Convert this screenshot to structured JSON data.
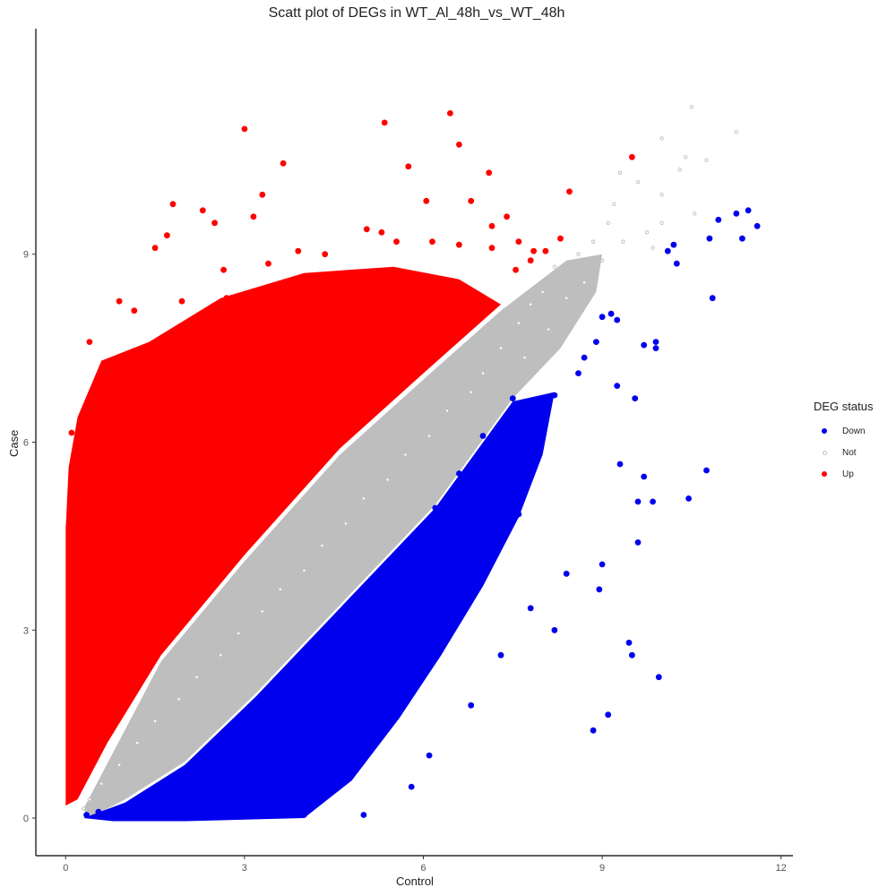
{
  "chart_data": {
    "type": "scatter",
    "title": "Scatt plot of DEGs in WT_Al_48h_vs_WT_48h",
    "xlabel": "Control",
    "ylabel": "Case",
    "xlim": [
      -0.5,
      12.2
    ],
    "ylim": [
      -0.6,
      12.6
    ],
    "x_ticks": [
      0,
      3,
      6,
      9,
      12
    ],
    "y_ticks": [
      0,
      3,
      6,
      9
    ],
    "grid": false,
    "legend": {
      "title": "DEG status",
      "placement": "right",
      "entries": [
        {
          "label": "Down",
          "color": "#0000ee"
        },
        {
          "label": "Not",
          "color": "#bebebe"
        },
        {
          "label": "Up",
          "color": "#ff0000"
        }
      ]
    },
    "series": [
      {
        "name": "Up",
        "color": "#ff0000",
        "points": [
          [
            3.0,
            11.0
          ],
          [
            5.35,
            11.1
          ],
          [
            6.45,
            11.25
          ],
          [
            6.6,
            10.75
          ],
          [
            3.65,
            10.45
          ],
          [
            5.75,
            10.4
          ],
          [
            7.1,
            10.3
          ],
          [
            9.5,
            10.55
          ],
          [
            2.3,
            9.7
          ],
          [
            1.8,
            9.8
          ],
          [
            3.3,
            9.95
          ],
          [
            3.15,
            9.6
          ],
          [
            2.5,
            9.5
          ],
          [
            6.05,
            9.85
          ],
          [
            6.8,
            9.85
          ],
          [
            7.4,
            9.6
          ],
          [
            7.15,
            9.45
          ],
          [
            8.45,
            10.0
          ],
          [
            1.7,
            9.3
          ],
          [
            1.5,
            9.1
          ],
          [
            3.9,
            9.05
          ],
          [
            4.35,
            9.0
          ],
          [
            5.05,
            9.4
          ],
          [
            5.3,
            9.35
          ],
          [
            5.55,
            9.2
          ],
          [
            6.15,
            9.2
          ],
          [
            6.6,
            9.15
          ],
          [
            7.15,
            9.1
          ],
          [
            7.6,
            9.2
          ],
          [
            8.3,
            9.25
          ],
          [
            7.85,
            9.05
          ],
          [
            8.05,
            9.05
          ],
          [
            0.9,
            8.25
          ],
          [
            1.15,
            8.1
          ],
          [
            2.7,
            8.3
          ],
          [
            2.5,
            8.15
          ],
          [
            1.95,
            8.25
          ],
          [
            2.65,
            8.75
          ],
          [
            3.4,
            8.85
          ],
          [
            4.55,
            8.6
          ],
          [
            5.0,
            8.7
          ],
          [
            5.55,
            8.55
          ],
          [
            6.5,
            8.55
          ],
          [
            7.55,
            8.75
          ],
          [
            7.8,
            8.9
          ],
          [
            0.4,
            7.6
          ],
          [
            0.65,
            7.2
          ],
          [
            1.4,
            7.4
          ],
          [
            1.0,
            7.3
          ],
          [
            0.55,
            6.55
          ],
          [
            0.1,
            6.15
          ],
          [
            0.2,
            5.55
          ],
          [
            0.05,
            4.65
          ],
          [
            2.05,
            7.6
          ],
          [
            2.4,
            7.9
          ],
          [
            3.3,
            8.05
          ],
          [
            4.3,
            7.9
          ],
          [
            5.1,
            8.1
          ],
          [
            6.2,
            8.05
          ],
          [
            6.75,
            8.25
          ],
          [
            1.8,
            6.9
          ],
          [
            2.2,
            6.6
          ],
          [
            2.9,
            7.0
          ],
          [
            3.6,
            7.4
          ],
          [
            4.05,
            7.2
          ],
          [
            4.7,
            7.5
          ],
          [
            5.35,
            7.55
          ],
          [
            6.0,
            7.6
          ],
          [
            6.5,
            7.7
          ],
          [
            0.3,
            5.9
          ],
          [
            0.55,
            5.4
          ],
          [
            0.9,
            5.85
          ],
          [
            1.4,
            6.25
          ],
          [
            2.0,
            6.05
          ],
          [
            2.7,
            6.4
          ],
          [
            3.4,
            6.6
          ],
          [
            4.2,
            6.85
          ],
          [
            4.9,
            6.95
          ],
          [
            5.6,
            7.25
          ],
          [
            6.2,
            7.35
          ],
          [
            0.2,
            4.2
          ],
          [
            0.45,
            4.9
          ],
          [
            0.85,
            4.75
          ],
          [
            1.3,
            5.3
          ],
          [
            1.9,
            5.5
          ],
          [
            2.5,
            5.75
          ],
          [
            3.1,
            6.05
          ],
          [
            3.75,
            6.35
          ],
          [
            4.4,
            6.55
          ],
          [
            5.1,
            6.8
          ],
          [
            0.15,
            3.3
          ],
          [
            0.35,
            3.85
          ],
          [
            0.7,
            4.1
          ],
          [
            1.1,
            4.4
          ],
          [
            1.6,
            4.7
          ],
          [
            2.2,
            5.1
          ],
          [
            2.8,
            5.35
          ],
          [
            3.45,
            5.7
          ],
          [
            4.1,
            5.95
          ],
          [
            4.7,
            6.3
          ],
          [
            0.1,
            2.45
          ],
          [
            0.25,
            2.9
          ],
          [
            0.55,
            3.3
          ],
          [
            0.9,
            3.6
          ],
          [
            1.35,
            3.95
          ],
          [
            1.85,
            4.3
          ],
          [
            2.4,
            4.65
          ],
          [
            3.0,
            5.0
          ],
          [
            3.6,
            5.3
          ],
          [
            4.25,
            5.6
          ]
        ]
      },
      {
        "name": "Not",
        "color": "#bebebe",
        "points": [
          [
            10.5,
            11.35
          ],
          [
            11.25,
            10.95
          ],
          [
            10.0,
            10.85
          ],
          [
            10.4,
            10.55
          ],
          [
            10.75,
            10.5
          ],
          [
            9.3,
            10.3
          ],
          [
            10.3,
            10.35
          ],
          [
            9.6,
            10.15
          ],
          [
            10.0,
            9.95
          ],
          [
            9.2,
            9.8
          ],
          [
            10.55,
            9.65
          ],
          [
            10.0,
            9.5
          ],
          [
            9.75,
            9.35
          ],
          [
            9.1,
            9.5
          ],
          [
            9.85,
            9.1
          ],
          [
            9.35,
            9.2
          ],
          [
            8.85,
            9.2
          ],
          [
            8.6,
            9.0
          ],
          [
            8.2,
            8.8
          ],
          [
            9.0,
            8.9
          ],
          [
            8.7,
            8.55
          ],
          [
            8.0,
            8.4
          ],
          [
            7.8,
            8.2
          ],
          [
            8.4,
            8.3
          ],
          [
            7.6,
            7.9
          ],
          [
            8.1,
            7.8
          ],
          [
            7.3,
            7.5
          ],
          [
            7.7,
            7.35
          ],
          [
            7.0,
            7.1
          ],
          [
            6.8,
            6.8
          ],
          [
            6.4,
            6.5
          ],
          [
            6.1,
            6.1
          ],
          [
            5.7,
            5.8
          ],
          [
            5.4,
            5.4
          ],
          [
            5.0,
            5.1
          ],
          [
            4.7,
            4.7
          ],
          [
            4.3,
            4.35
          ],
          [
            4.0,
            3.95
          ],
          [
            3.6,
            3.65
          ],
          [
            3.3,
            3.3
          ],
          [
            2.9,
            2.95
          ],
          [
            2.6,
            2.6
          ],
          [
            2.2,
            2.25
          ],
          [
            1.9,
            1.9
          ],
          [
            1.5,
            1.55
          ],
          [
            1.2,
            1.2
          ],
          [
            0.9,
            0.85
          ],
          [
            0.6,
            0.55
          ],
          [
            0.4,
            0.3
          ],
          [
            0.3,
            0.15
          ]
        ]
      },
      {
        "name": "Down",
        "color": "#0000ee",
        "points": [
          [
            11.6,
            9.45
          ],
          [
            11.45,
            9.7
          ],
          [
            11.25,
            9.65
          ],
          [
            11.35,
            9.25
          ],
          [
            10.95,
            9.55
          ],
          [
            10.8,
            9.25
          ],
          [
            10.2,
            9.15
          ],
          [
            10.1,
            9.05
          ],
          [
            10.25,
            8.85
          ],
          [
            10.85,
            8.3
          ],
          [
            9.9,
            7.6
          ],
          [
            9.9,
            7.5
          ],
          [
            9.7,
            7.55
          ],
          [
            9.25,
            7.95
          ],
          [
            9.15,
            8.05
          ],
          [
            9.0,
            8.0
          ],
          [
            8.9,
            7.6
          ],
          [
            8.7,
            7.35
          ],
          [
            8.6,
            7.1
          ],
          [
            9.25,
            6.9
          ],
          [
            9.55,
            6.7
          ],
          [
            9.6,
            5.05
          ],
          [
            9.7,
            5.45
          ],
          [
            9.85,
            5.05
          ],
          [
            10.45,
            5.1
          ],
          [
            10.75,
            5.55
          ],
          [
            9.3,
            5.65
          ],
          [
            9.6,
            4.4
          ],
          [
            9.0,
            4.05
          ],
          [
            9.95,
            2.25
          ],
          [
            9.45,
            2.8
          ],
          [
            9.5,
            2.6
          ],
          [
            9.1,
            1.65
          ],
          [
            8.85,
            1.4
          ],
          [
            8.95,
            3.65
          ],
          [
            8.4,
            3.9
          ],
          [
            8.2,
            3.0
          ],
          [
            7.8,
            3.35
          ],
          [
            7.3,
            2.6
          ],
          [
            6.8,
            1.8
          ],
          [
            6.1,
            1.0
          ],
          [
            5.0,
            0.05
          ],
          [
            5.8,
            0.5
          ],
          [
            4.7,
            0.8
          ],
          [
            4.0,
            0.05
          ],
          [
            3.0,
            0.05
          ],
          [
            2.0,
            0.05
          ],
          [
            1.0,
            0.05
          ],
          [
            0.35,
            0.05
          ],
          [
            0.55,
            0.1
          ],
          [
            8.2,
            6.75
          ],
          [
            7.8,
            6.1
          ],
          [
            7.4,
            5.6
          ],
          [
            7.6,
            4.85
          ],
          [
            7.1,
            4.3
          ],
          [
            6.9,
            5.0
          ],
          [
            6.5,
            4.4
          ],
          [
            6.2,
            3.7
          ],
          [
            6.0,
            3.1
          ],
          [
            5.6,
            2.5
          ],
          [
            5.3,
            1.9
          ],
          [
            4.9,
            1.4
          ],
          [
            4.5,
            1.0
          ],
          [
            4.1,
            0.6
          ],
          [
            3.6,
            0.3
          ],
          [
            7.5,
            6.7
          ],
          [
            7.0,
            6.1
          ],
          [
            6.6,
            5.5
          ],
          [
            6.2,
            4.95
          ],
          [
            5.8,
            4.4
          ],
          [
            5.4,
            3.85
          ],
          [
            5.0,
            3.3
          ],
          [
            4.6,
            2.75
          ],
          [
            4.2,
            2.2
          ],
          [
            3.8,
            1.7
          ],
          [
            3.4,
            1.25
          ],
          [
            3.0,
            0.8
          ],
          [
            2.6,
            0.45
          ],
          [
            2.2,
            0.2
          ],
          [
            1.8,
            0.05
          ]
        ]
      }
    ]
  }
}
